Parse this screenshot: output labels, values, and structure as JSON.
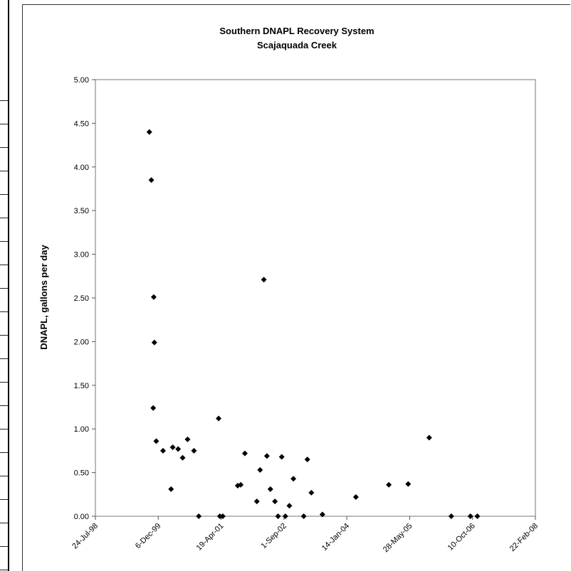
{
  "chart_data": {
    "type": "scatter",
    "title": "Southern DNAPL Recovery System",
    "subtitle": "Scajaquada Creek",
    "xlabel": "",
    "ylabel": "DNAPL, gallons per day",
    "ylim": [
      0,
      5
    ],
    "yticks": [
      "0.00",
      "0.50",
      "1.00",
      "1.50",
      "2.00",
      "2.50",
      "3.00",
      "3.50",
      "4.00",
      "4.50",
      "5.00"
    ],
    "xlim": [
      "1998-07-24",
      "2008-02-22"
    ],
    "xticks": [
      "24-Jul-98",
      "6-Dec-99",
      "19-Apr-01",
      "1-Sep-02",
      "14-Jan-04",
      "28-May-05",
      "10-Oct-06",
      "22-Feb-08"
    ],
    "grid": false,
    "legend": "none",
    "marker_color": "#000000",
    "marker": "diamond",
    "series": [
      {
        "x": [
          "1999-09-26",
          "1999-10-12",
          "1999-10-31",
          "1999-10-27",
          "1999-11-20",
          "1999-11-05",
          "2000-01-13",
          "2000-03-17",
          "2000-03-30",
          "2000-05-12",
          "2000-06-17",
          "2000-07-26",
          "2000-09-15",
          "2000-10-23",
          "2001-03-30",
          "2001-04-09",
          "2001-05-02",
          "2001-08-29",
          "2001-09-22",
          "2001-10-25",
          "2002-01-28",
          "2002-02-23",
          "2002-03-25",
          "2002-04-18",
          "2002-05-16",
          "2002-06-21",
          "2002-07-16",
          "2002-08-14",
          "2002-09-12",
          "2002-10-14",
          "2002-11-15",
          "2003-02-05",
          "2003-03-06",
          "2003-04-07",
          "2003-07-04",
          "2004-03-26",
          "2004-12-13",
          "2005-05-16",
          "2005-10-30",
          "2006-04-24",
          "2006-09-23",
          "2006-11-17"
        ],
        "y": [
          4.4,
          3.85,
          2.51,
          1.24,
          0.86,
          1.99,
          0.75,
          0.31,
          0.79,
          0.77,
          0.67,
          0.88,
          0.75,
          0.0,
          1.12,
          0.0,
          0.0,
          0.35,
          0.36,
          0.72,
          0.17,
          0.53,
          2.71,
          0.69,
          0.31,
          0.17,
          0.0,
          0.68,
          0.0,
          0.12,
          0.43,
          0.0,
          0.65,
          0.27,
          0.02,
          0.22,
          0.36,
          0.37,
          0.9,
          0.0,
          0.0,
          0.0
        ]
      }
    ]
  }
}
